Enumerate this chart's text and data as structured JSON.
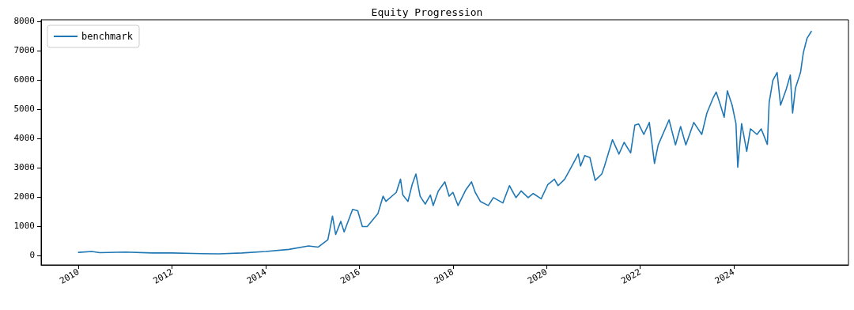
{
  "chart_data": {
    "type": "line",
    "title": "Equity Progression",
    "legend": "top left",
    "grid": false,
    "marker": "none",
    "line_style": "solid",
    "x": [
      "2010-01-01",
      "2010-04-15",
      "2010-06-15",
      "2011-01-01",
      "2011-08-01",
      "2012-01-01",
      "2012-06-15",
      "2013-01-01",
      "2013-07-01",
      "2014-01-01",
      "2014-07-01",
      "2014-12-01",
      "2015-02-15",
      "2015-05-01",
      "2015-06-06",
      "2015-07-01",
      "2015-08-10",
      "2015-09-05",
      "2015-11-10",
      "2015-12-20",
      "2016-01-25",
      "2016-03-03",
      "2016-05-26",
      "2016-07-05",
      "2016-07-27",
      "2016-10-16",
      "2016-11-18",
      "2016-12-06",
      "2017-01-15",
      "2017-02-17",
      "2017-03-18",
      "2017-04-20",
      "2017-05-30",
      "2017-07-09",
      "2017-07-31",
      "2017-09-09",
      "2017-10-30",
      "2017-12-02",
      "2018-01-01",
      "2018-02-10",
      "2018-04-12",
      "2018-05-26",
      "2018-06-24",
      "2018-08-03",
      "2018-10-04",
      "2018-11-13",
      "2019-01-26",
      "2019-03-18",
      "2019-05-08",
      "2019-06-17",
      "2019-08-11",
      "2019-09-20",
      "2019-11-21",
      "2020-01-12",
      "2020-03-03",
      "2020-04-01",
      "2020-05-22",
      "2020-07-05",
      "2020-09-05",
      "2020-09-23",
      "2020-10-26",
      "2020-12-05",
      "2021-01-15",
      "2021-03-08",
      "2021-03-29",
      "2021-05-30",
      "2021-07-20",
      "2021-08-29",
      "2021-10-19",
      "2021-11-21",
      "2021-12-20",
      "2022-01-30",
      "2022-03-14",
      "2022-04-23",
      "2022-05-22",
      "2022-08-15",
      "2022-10-04",
      "2022-11-13",
      "2022-12-24",
      "2023-02-24",
      "2023-04-27",
      "2023-06-06",
      "2023-07-27",
      "2023-08-18",
      "2023-09-20",
      "2023-10-19",
      "2023-11-13",
      "2023-12-20",
      "2024-01-19",
      "2024-02-02",
      "2024-03-03",
      "2024-04-12",
      "2024-05-11",
      "2024-07-01",
      "2024-08-03",
      "2024-09-20",
      "2024-10-04",
      "2024-11-02",
      "2024-12-05",
      "2025-01-01",
      "2025-02-14",
      "2025-03-18",
      "2025-04-05",
      "2025-04-27",
      "2025-06-06",
      "2025-06-28",
      "2025-07-27",
      "2025-08-29"
    ],
    "series": [
      {
        "name": "benchmark",
        "color": "#1f77b4",
        "values": [
          100,
          130,
          90,
          110,
          80,
          80,
          60,
          50,
          80,
          130,
          200,
          320,
          280,
          530,
          1340,
          710,
          1160,
          800,
          1570,
          1520,
          980,
          980,
          1430,
          2020,
          1840,
          2150,
          2600,
          2060,
          1840,
          2420,
          2780,
          2020,
          1750,
          2060,
          1700,
          2200,
          2510,
          2020,
          2150,
          1700,
          2240,
          2510,
          2150,
          1840,
          1700,
          1970,
          1790,
          2380,
          1970,
          2200,
          1970,
          2110,
          1930,
          2420,
          2600,
          2380,
          2600,
          2950,
          3460,
          3050,
          3410,
          3340,
          2560,
          2780,
          3050,
          3950,
          3460,
          3860,
          3500,
          4450,
          4490,
          4130,
          4540,
          3140,
          3770,
          4630,
          3770,
          4400,
          3770,
          4540,
          4130,
          4860,
          5400,
          5580,
          5130,
          4720,
          5620,
          5130,
          4500,
          3010,
          4500,
          3550,
          4320,
          4130,
          4320,
          3790,
          5220,
          5980,
          6250,
          5130,
          5670,
          6160,
          4860,
          5710,
          6250,
          6930,
          7420,
          7650
        ]
      }
    ],
    "xlim": [
      "2009-03-15",
      "2026-06-15"
    ],
    "xticks": [
      "2010",
      "2012",
      "2014",
      "2016",
      "2018",
      "2020",
      "2022",
      "2024"
    ],
    "ylim": [
      -330,
      8050
    ],
    "yticks": [
      0,
      1000,
      2000,
      3000,
      4000,
      5000,
      6000,
      7000,
      8000
    ]
  }
}
